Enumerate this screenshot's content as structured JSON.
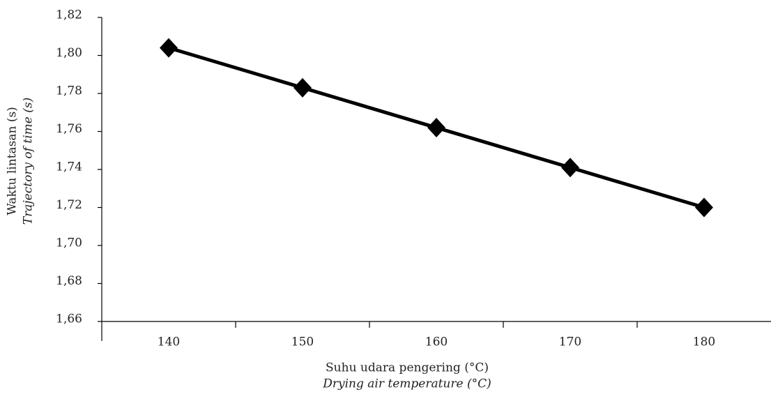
{
  "chart_data": {
    "type": "line",
    "x_label": "Suhu udara pengering (°C)",
    "x_label_en": "Drying air temperature (°C)",
    "y_label": "Waktu lintasan (s)",
    "y_label_en": "Trajectory of time (s)",
    "categories": [
      "140",
      "150",
      "160",
      "170",
      "180"
    ],
    "series": [
      {
        "color": "#000000",
        "values": [
          1.804,
          1.783,
          1.762,
          1.741,
          1.72
        ]
      }
    ],
    "ylim": [
      1.66,
      1.82
    ],
    "yticks": [
      {
        "value": 1.66,
        "label": "1,66"
      },
      {
        "value": 1.68,
        "label": "1,68"
      },
      {
        "value": 1.7,
        "label": "1,70"
      },
      {
        "value": 1.72,
        "label": "1,72"
      },
      {
        "value": 1.74,
        "label": "1,74"
      },
      {
        "value": 1.76,
        "label": "1,76"
      },
      {
        "value": 1.78,
        "label": "1,78"
      },
      {
        "value": 1.8,
        "label": "1,80"
      },
      {
        "value": 1.82,
        "label": "1,82"
      }
    ],
    "grid": false
  }
}
